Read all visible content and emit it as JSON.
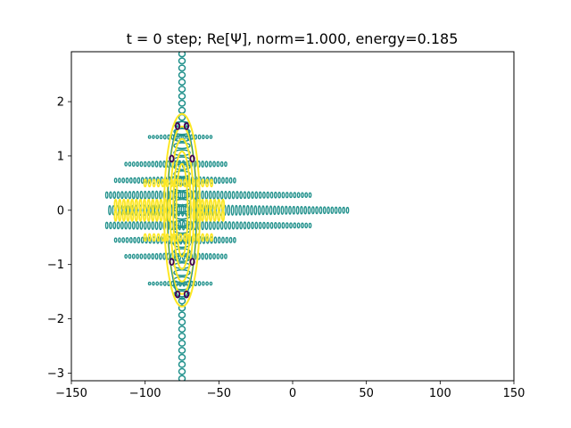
{
  "chart_data": {
    "type": "contour",
    "title": "t =  0 step; Re[Ψ], norm=1.000, energy=0.185",
    "xlabel": "",
    "ylabel": "",
    "xlim": [
      -150,
      150
    ],
    "ylim": [
      -3.14,
      2.92
    ],
    "xticks": [
      -150,
      -100,
      -50,
      0,
      50,
      100,
      150
    ],
    "xtick_labels": [
      "−150",
      "−100",
      "−50",
      "0",
      "50",
      "100",
      "150"
    ],
    "yticks": [
      -3,
      -2,
      -1,
      0,
      1,
      2
    ],
    "ytick_labels": [
      "−3",
      "−2",
      "−1",
      "0",
      "1",
      "2"
    ],
    "grid": false,
    "legend": "none",
    "colormap": "viridis",
    "field": "Re[Ψ] of a wave packet",
    "contour_colors": [
      "#440154",
      "#21918c",
      "#fde725"
    ],
    "packet_center": [
      -75,
      0
    ],
    "packet_extent_x": [
      -128,
      38
    ],
    "packet_extent_y": [
      -3.14,
      2.92
    ]
  }
}
